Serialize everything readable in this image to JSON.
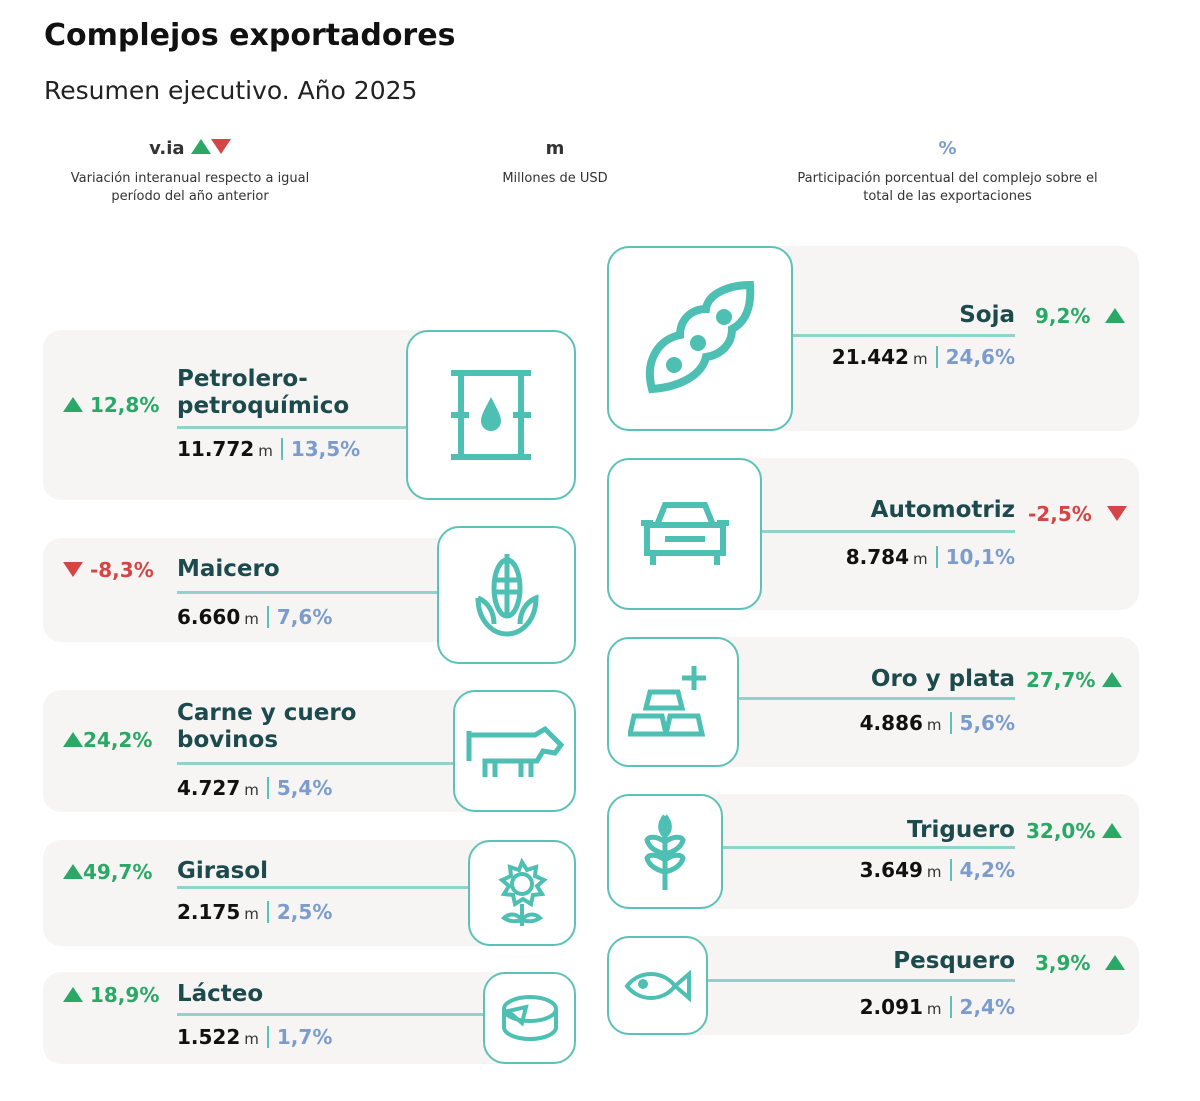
{
  "title": "Complejos exportadores",
  "subtitle": "Resumen ejecutivo. Año 2025",
  "legend": [
    {
      "symbol": "v.ia",
      "text": "Variación interanual respecto a igual período del año anterior"
    },
    {
      "symbol": "m",
      "text": "Millones de USD"
    },
    {
      "symbol": "%",
      "text": "Participación porcentual del complejo sobre el total de las exportaciones"
    }
  ],
  "colors": {
    "accent": "#5cc2b8",
    "up": "#2aa866",
    "down": "#d64545",
    "share": "#7b9ccc",
    "name": "#1d4a4c"
  },
  "unit": "m",
  "left": [
    {
      "name": "Petrolero-petroquímico",
      "name1": "Petrolero-",
      "name2": "petroquímico",
      "variation": "12,8%",
      "trend": "up",
      "value": "11.772",
      "share": "13,5%",
      "icon": "oil-barrel-icon"
    },
    {
      "name": "Maicero",
      "variation": "-8,3%",
      "trend": "down",
      "value": "6.660",
      "share": "7,6%",
      "icon": "corn-icon"
    },
    {
      "name": "Carne y cuero bovinos",
      "name1": "Carne y cuero",
      "name2": "bovinos",
      "variation": "24,2%",
      "trend": "up",
      "value": "4.727",
      "share": "5,4%",
      "icon": "cow-icon"
    },
    {
      "name": "Girasol",
      "variation": "49,7%",
      "trend": "up",
      "value": "2.175",
      "share": "2,5%",
      "icon": "sunflower-icon"
    },
    {
      "name": "Lácteo",
      "variation": "18,9%",
      "trend": "up",
      "value": "1.522",
      "share": "1,7%",
      "icon": "cheese-icon"
    }
  ],
  "right": [
    {
      "name": "Soja",
      "variation": "9,2%",
      "trend": "up",
      "value": "21.442",
      "share": "24,6%",
      "icon": "soybean-icon"
    },
    {
      "name": "Automotriz",
      "variation": "-2,5%",
      "trend": "down",
      "value": "8.784",
      "share": "10,1%",
      "icon": "car-icon"
    },
    {
      "name": "Oro y plata",
      "variation": "27,7%",
      "trend": "up",
      "value": "4.886",
      "share": "5,6%",
      "icon": "gold-bars-icon"
    },
    {
      "name": "Triguero",
      "variation": "32,0%",
      "trend": "up",
      "value": "3.649",
      "share": "4,2%",
      "icon": "wheat-icon"
    },
    {
      "name": "Pesquero",
      "variation": "3,9%",
      "trend": "up",
      "value": "2.091",
      "share": "2,4%",
      "icon": "fish-icon"
    }
  ]
}
